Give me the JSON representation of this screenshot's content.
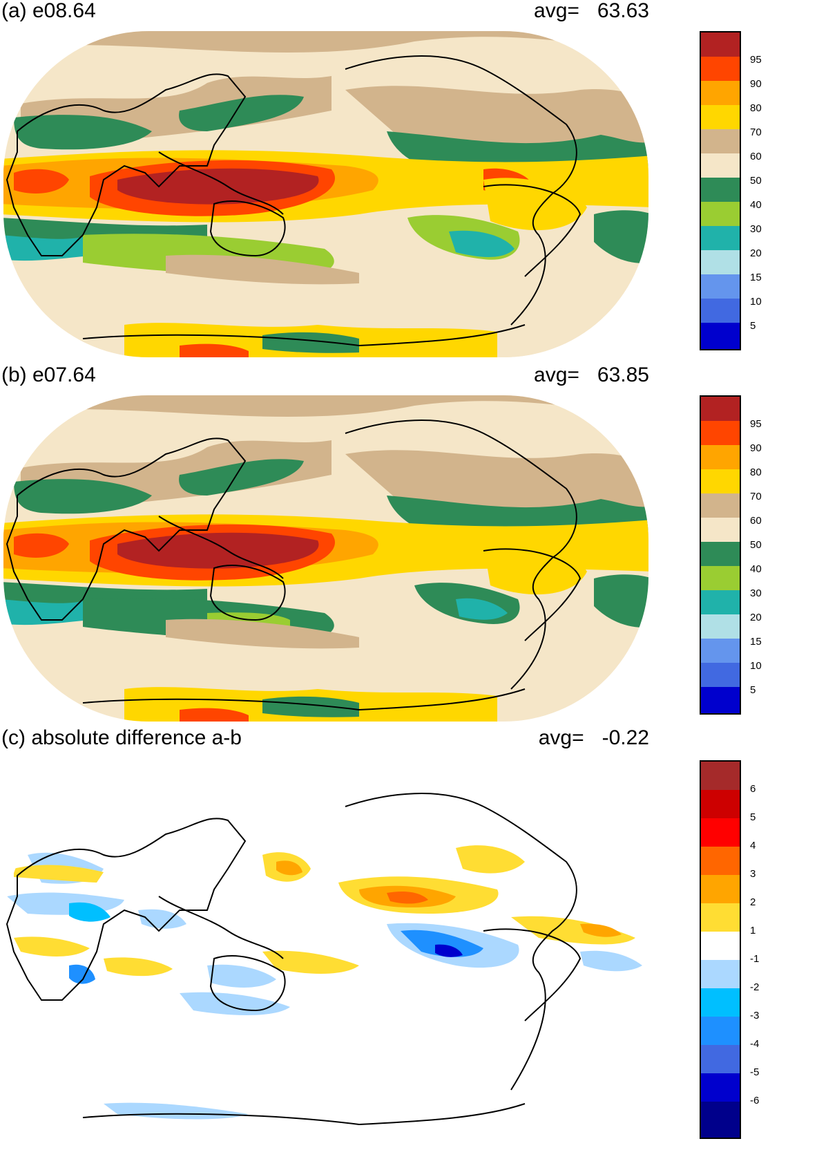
{
  "panels": [
    {
      "id": "a",
      "title": "(a) e08.64",
      "avg_label": "avg=",
      "avg_value": "63.63",
      "kind": "field"
    },
    {
      "id": "b",
      "title": "(b) e07.64",
      "avg_label": "avg=",
      "avg_value": "63.85",
      "kind": "field"
    },
    {
      "id": "c",
      "title": "(c) absolute difference a-b",
      "avg_label": "avg=",
      "avg_value": "-0.22",
      "kind": "diff"
    }
  ],
  "colorbars": {
    "field": {
      "colors": [
        "#b22222",
        "#ff4500",
        "#ffa500",
        "#ffd700",
        "#d2b48c",
        "#f5e6c8",
        "#2e8b57",
        "#9acd32",
        "#20b2aa",
        "#b0e0e6",
        "#6495ed",
        "#4169e1",
        "#0000cd"
      ],
      "labels": [
        "95",
        "90",
        "80",
        "70",
        "60",
        "50",
        "40",
        "30",
        "20",
        "15",
        "10",
        "5"
      ]
    },
    "diff": {
      "colors": [
        "#a52a2a",
        "#cd0000",
        "#ff0000",
        "#ff6600",
        "#ffa500",
        "#ffdd33",
        "#ffffff",
        "#abd8ff",
        "#00bfff",
        "#1e90ff",
        "#4169e1",
        "#0000cd",
        "#00008b"
      ],
      "labels": [
        "6",
        "5",
        "4",
        "3",
        "2",
        "1",
        "-1",
        "-2",
        "-3",
        "-4",
        "-5",
        "-6"
      ]
    }
  }
}
